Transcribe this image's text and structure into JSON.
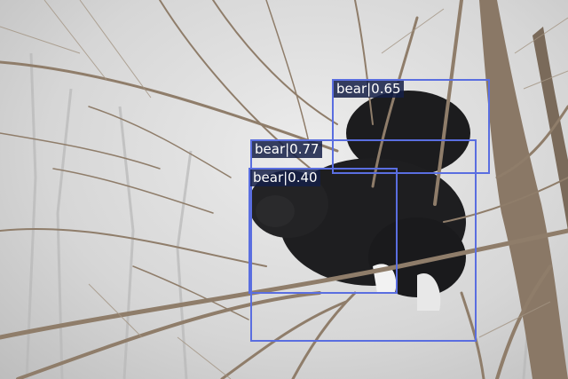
{
  "detections": [
    {
      "label": "bear|0.65"
    },
    {
      "label": "bear|0.77"
    },
    {
      "label": "bear|0.40"
    }
  ],
  "colors": {
    "box": "#5a6ee0",
    "label_bg": "#141e46",
    "label_text": "#ffffff"
  }
}
